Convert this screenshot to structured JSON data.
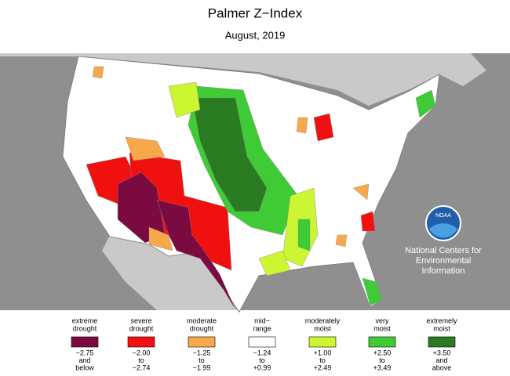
{
  "header": {
    "title": "Palmer Z−Index",
    "subtitle": "August, 2019"
  },
  "logo": {
    "text": "NOAA",
    "org": [
      "National Centers for",
      "Environmental",
      "Information"
    ]
  },
  "legend": [
    {
      "label": [
        "extreme",
        "drought"
      ],
      "color": "#7a0a3f",
      "range": [
        "−2.75",
        "and",
        "below"
      ]
    },
    {
      "label": [
        "severe",
        "drought"
      ],
      "color": "#f01010",
      "range": [
        "−2.00",
        "to",
        "−2.74"
      ]
    },
    {
      "label": [
        "moderate",
        "drought"
      ],
      "color": "#f7a84a",
      "range": [
        "−1.25",
        "to",
        "−1.99"
      ]
    },
    {
      "label": [
        "mid−",
        "range"
      ],
      "color": "#ffffff",
      "range": [
        "−1.24",
        "to",
        "+0.99"
      ]
    },
    {
      "label": [
        "moderately",
        "moist"
      ],
      "color": "#ccf532",
      "range": [
        "+1.00",
        "to",
        "+2.49"
      ]
    },
    {
      "label": [
        "very",
        "moist"
      ],
      "color": "#3ecb36",
      "range": [
        "+2.50",
        "to",
        "+3.49"
      ]
    },
    {
      "label": [
        "extremely",
        "moist"
      ],
      "color": "#2a7a22",
      "range": [
        "+3.50",
        "and",
        "above"
      ]
    }
  ]
}
